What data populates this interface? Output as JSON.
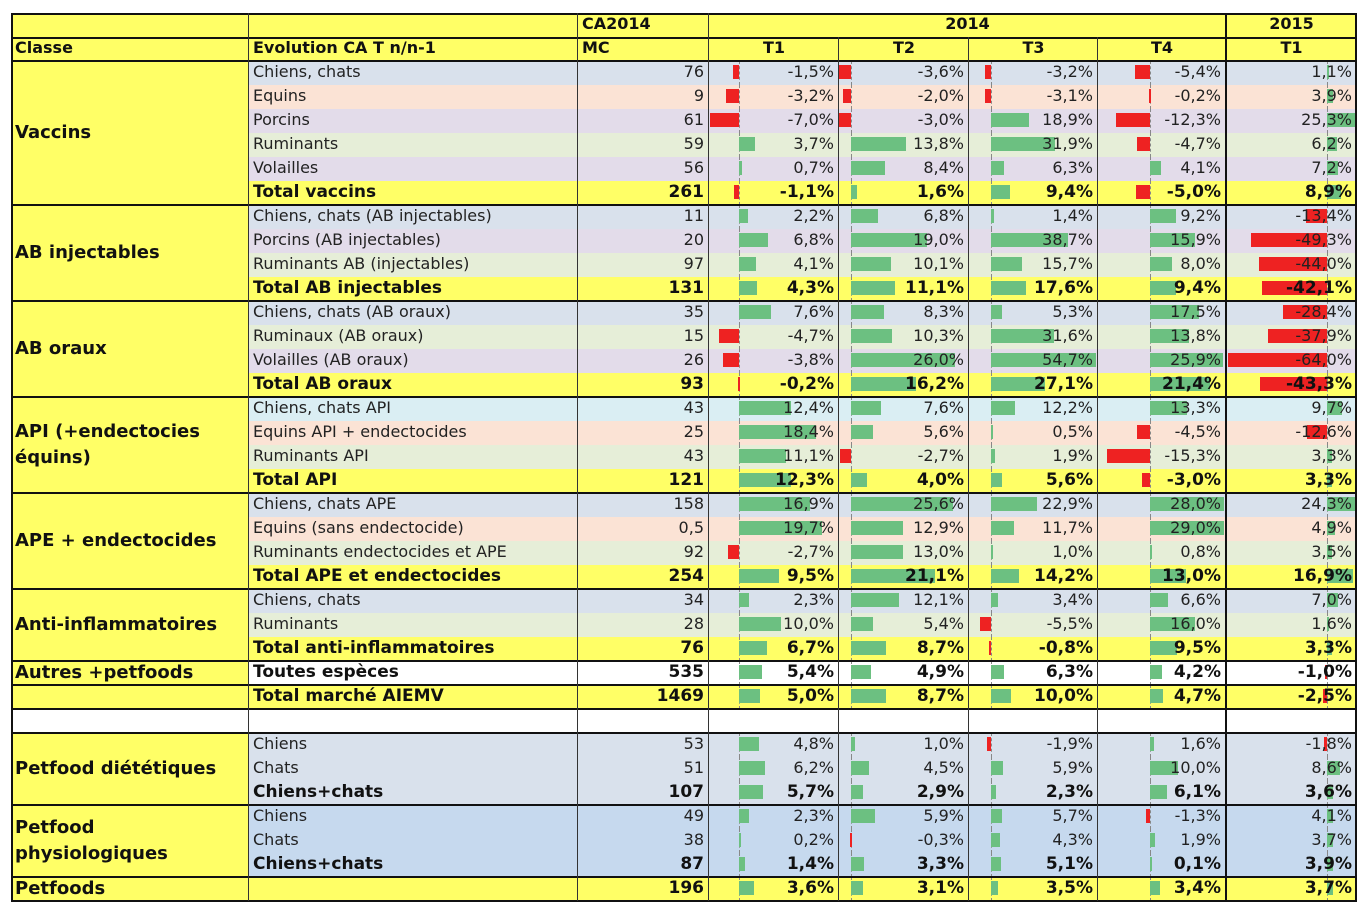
{
  "header": {
    "title_ca": "CA2014",
    "title_2014": "2014",
    "title_2015": "2015",
    "col_classe": "Classe",
    "col_evolution": "Evolution CA T n/n-1",
    "col_mc": "MC",
    "quarters_2014": [
      "T1",
      "T2",
      "T3",
      "T4"
    ],
    "quarter_2015": "T1"
  },
  "colors": {
    "header_yellow": "#ffff66",
    "bar_positive": "#6cc081",
    "bar_negative": "#ee2222"
  },
  "groups": [
    {
      "label": "Vaccins",
      "rows": [
        {
          "label": "Chiens, chats",
          "ca": "76",
          "t1": "-1,5%",
          "t2": "-3,6%",
          "t3": "-3,2%",
          "t4": "-5,4%",
          "t15": "1,1%",
          "v": [
            -1.5,
            -3.6,
            -3.2,
            -5.4,
            1.1
          ],
          "bg": "#d9e1ec"
        },
        {
          "label": "Equins",
          "ca": "9",
          "t1": "-3,2%",
          "t2": "-2,0%",
          "t3": "-3,1%",
          "t4": "-0,2%",
          "t15": "3,9%",
          "v": [
            -3.2,
            -2.0,
            -3.1,
            -0.2,
            3.9
          ],
          "bg": "#fbe3d5"
        },
        {
          "label": "Porcins",
          "ca": "61",
          "t1": "-7,0%",
          "t2": "-3,0%",
          "t3": "18,9%",
          "t4": "-12,3%",
          "t15": "25,3%",
          "v": [
            -7.0,
            -3.0,
            18.9,
            -12.3,
            25.3
          ],
          "bg": "#e3dcea"
        },
        {
          "label": "Ruminants",
          "ca": "59",
          "t1": "3,7%",
          "t2": "13,8%",
          "t3": "31,9%",
          "t4": "-4,7%",
          "t15": "6,2%",
          "v": [
            3.7,
            13.8,
            31.9,
            -4.7,
            6.2
          ],
          "bg": "#e6eed8"
        },
        {
          "label": "Volailles",
          "ca": "56",
          "t1": "0,7%",
          "t2": "8,4%",
          "t3": "6,3%",
          "t4": "4,1%",
          "t15": "7,2%",
          "v": [
            0.7,
            8.4,
            6.3,
            4.1,
            7.2
          ],
          "bg": "#e3dcea"
        },
        {
          "label": "Total vaccins",
          "ca": "261",
          "t1": "-1,1%",
          "t2": "1,6%",
          "t3": "9,4%",
          "t4": "-5,0%",
          "t15": "8,9%",
          "v": [
            -1.1,
            1.6,
            9.4,
            -5.0,
            8.9
          ],
          "total": true
        }
      ]
    },
    {
      "label": "AB injectables",
      "rows": [
        {
          "label": "Chiens, chats (AB injectables)",
          "ca": "11",
          "t1": "2,2%",
          "t2": "6,8%",
          "t3": "1,4%",
          "t4": "9,2%",
          "t15": "-13,4%",
          "v": [
            2.2,
            6.8,
            1.4,
            9.2,
            -13.4
          ],
          "bg": "#d9e1ec"
        },
        {
          "label": "Porcins (AB injectables)",
          "ca": "20",
          "t1": "6,8%",
          "t2": "19,0%",
          "t3": "38,7%",
          "t4": "15,9%",
          "t15": "-49,3%",
          "v": [
            6.8,
            19.0,
            38.7,
            15.9,
            -49.3
          ],
          "bg": "#e3dcea"
        },
        {
          "label": "Ruminants AB (injectables)",
          "ca": "97",
          "t1": "4,1%",
          "t2": "10,1%",
          "t3": "15,7%",
          "t4": "8,0%",
          "t15": "-44,0%",
          "v": [
            4.1,
            10.1,
            15.7,
            8.0,
            -44.0
          ],
          "bg": "#e6eed8"
        },
        {
          "label": "Total AB injectables",
          "ca": "131",
          "t1": "4,3%",
          "t2": "11,1%",
          "t3": "17,6%",
          "t4": "9,4%",
          "t15": "-42,1%",
          "v": [
            4.3,
            11.1,
            17.6,
            9.4,
            -42.1
          ],
          "total": true
        }
      ]
    },
    {
      "label": "AB oraux",
      "rows": [
        {
          "label": "Chiens, chats (AB oraux)",
          "ca": "35",
          "t1": "7,6%",
          "t2": "8,3%",
          "t3": "5,3%",
          "t4": "17,5%",
          "t15": "-28,4%",
          "v": [
            7.6,
            8.3,
            5.3,
            17.5,
            -28.4
          ],
          "bg": "#d9e1ec"
        },
        {
          "label": "Ruminaux (AB oraux)",
          "ca": "15",
          "t1": "-4,7%",
          "t2": "10,3%",
          "t3": "31,6%",
          "t4": "13,8%",
          "t15": "-37,9%",
          "v": [
            -4.7,
            10.3,
            31.6,
            13.8,
            -37.9
          ],
          "bg": "#e6eed8"
        },
        {
          "label": "Volailles (AB oraux)",
          "ca": "26",
          "t1": "-3,8%",
          "t2": "26,0%",
          "t3": "54,7%",
          "t4": "25,9%",
          "t15": "-64,0%",
          "v": [
            -3.8,
            26.0,
            54.7,
            25.9,
            -64.0
          ],
          "bg": "#e3dcea"
        },
        {
          "label": "Total AB oraux",
          "ca": "93",
          "t1": "-0,2%",
          "t2": "16,2%",
          "t3": "27,1%",
          "t4": "21,4%",
          "t15": "-43,3%",
          "v": [
            -0.2,
            16.2,
            27.1,
            21.4,
            -43.3
          ],
          "total": true
        }
      ]
    },
    {
      "label": "API (+endectocies équins)",
      "rows": [
        {
          "label": "Chiens, chats API",
          "ca": "43",
          "t1": "12,4%",
          "t2": "7,6%",
          "t3": "12,2%",
          "t4": "13,3%",
          "t15": "9,7%",
          "v": [
            12.4,
            7.6,
            12.2,
            13.3,
            9.7
          ],
          "bg": "#daeef3"
        },
        {
          "label": "Equins API + endectocides",
          "ca": "25",
          "t1": "18,4%",
          "t2": "5,6%",
          "t3": "0,5%",
          "t4": "-4,5%",
          "t15": "-12,6%",
          "v": [
            18.4,
            5.6,
            0.5,
            -4.5,
            -12.6
          ],
          "bg": "#fbe3d5"
        },
        {
          "label": "Ruminants API",
          "ca": "43",
          "t1": "11,1%",
          "t2": "-2,7%",
          "t3": "1,9%",
          "t4": "-15,3%",
          "t15": "3,3%",
          "v": [
            11.1,
            -2.7,
            1.9,
            -15.3,
            3.3
          ],
          "bg": "#e6eed8"
        },
        {
          "label": "Total API",
          "ca": "121",
          "t1": "12,3%",
          "t2": "4,0%",
          "t3": "5,6%",
          "t4": "-3,0%",
          "t15": "3,3%",
          "v": [
            12.3,
            4.0,
            5.6,
            -3.0,
            3.3
          ],
          "total": true
        }
      ]
    },
    {
      "label": "APE + endectocides",
      "rows": [
        {
          "label": "Chiens, chats APE",
          "ca": "158",
          "t1": "16,9%",
          "t2": "25,6%",
          "t3": "22,9%",
          "t4": "28,0%",
          "t15": "24,3%",
          "v": [
            16.9,
            25.6,
            22.9,
            28.0,
            24.3
          ],
          "bg": "#d9e1ec"
        },
        {
          "label": "Equins (sans endectocide)",
          "ca": "0,5",
          "t1": "19,7%",
          "t2": "12,9%",
          "t3": "11,7%",
          "t4": "29,0%",
          "t15": "4,9%",
          "v": [
            19.7,
            12.9,
            11.7,
            29.0,
            4.9
          ],
          "bg": "#fbe3d5"
        },
        {
          "label": "Ruminants endectocides et APE",
          "ca": "92",
          "t1": "-2,7%",
          "t2": "13,0%",
          "t3": "1,0%",
          "t4": "0,8%",
          "t15": "3,5%",
          "v": [
            -2.7,
            13.0,
            1.0,
            0.8,
            3.5
          ],
          "bg": "#e6eed8"
        },
        {
          "label": "Total APE et endectocides",
          "ca": "254",
          "t1": "9,5%",
          "t2": "21,1%",
          "t3": "14,2%",
          "t4": "13,0%",
          "t15": "16,9%",
          "v": [
            9.5,
            21.1,
            14.2,
            13.0,
            16.9
          ],
          "total": true
        }
      ]
    },
    {
      "label": "Anti-inflammatoires",
      "rows": [
        {
          "label": "Chiens, chats",
          "ca": "34",
          "t1": "2,3%",
          "t2": "12,1%",
          "t3": "3,4%",
          "t4": "6,6%",
          "t15": "7,0%",
          "v": [
            2.3,
            12.1,
            3.4,
            6.6,
            7.0
          ],
          "bg": "#d9e1ec"
        },
        {
          "label": "Ruminants",
          "ca": "28",
          "t1": "10,0%",
          "t2": "5,4%",
          "t3": "-5,5%",
          "t4": "16,0%",
          "t15": "1,6%",
          "v": [
            10.0,
            5.4,
            -5.5,
            16.0,
            1.6
          ],
          "bg": "#e6eed8"
        },
        {
          "label": "Total anti-inflammatoires",
          "ca": "76",
          "t1": "6,7%",
          "t2": "8,7%",
          "t3": "-0,8%",
          "t4": "9,5%",
          "t15": "3,3%",
          "v": [
            6.7,
            8.7,
            -0.8,
            9.5,
            3.3
          ],
          "total": true
        }
      ]
    },
    {
      "label": "Autres +petfoods",
      "rows": [
        {
          "label": "Toutes espèces",
          "ca": "535",
          "t1": "5,4%",
          "t2": "4,9%",
          "t3": "6,3%",
          "t4": "4,2%",
          "t15": "-1,0%",
          "v": [
            5.4,
            4.9,
            6.3,
            4.2,
            -1.0
          ],
          "total": true,
          "bg": "#ffffff"
        }
      ]
    },
    {
      "label": "",
      "rows": [
        {
          "label": "Total marché AIEMV",
          "ca": "1469",
          "t1": "5,0%",
          "t2": "8,7%",
          "t3": "10,0%",
          "t4": "4,7%",
          "t15": "-2,5%",
          "v": [
            5.0,
            8.7,
            10.0,
            4.7,
            -2.5
          ],
          "total": true
        }
      ]
    },
    {
      "label": "",
      "rows": [
        {
          "label": "",
          "ca": "",
          "t1": "",
          "t2": "",
          "t3": "",
          "t4": "",
          "t15": "",
          "v": [],
          "bg": "#ffffff",
          "blank": true
        }
      ]
    },
    {
      "label": "Petfood diététiques",
      "classbg": "#ffff66",
      "rows": [
        {
          "label": "Chiens",
          "ca": "53",
          "t1": "4,8%",
          "t2": "1,0%",
          "t3": "-1,9%",
          "t4": "1,6%",
          "t15": "-1,8%",
          "v": [
            4.8,
            1.0,
            -1.9,
            1.6,
            -1.8
          ],
          "bg": "#d9e1ec"
        },
        {
          "label": "Chats",
          "ca": "51",
          "t1": "6,2%",
          "t2": "4,5%",
          "t3": "5,9%",
          "t4": "10,0%",
          "t15": "8,6%",
          "v": [
            6.2,
            4.5,
            5.9,
            10.0,
            8.6
          ],
          "bg": "#d9e1ec"
        },
        {
          "label": "Chiens+chats",
          "ca": "107",
          "t1": "5,7%",
          "t2": "2,9%",
          "t3": "2,3%",
          "t4": "6,1%",
          "t15": "3,6%",
          "v": [
            5.7,
            2.9,
            2.3,
            6.1,
            3.6
          ],
          "total": true,
          "bg": "#d9e1ec"
        }
      ]
    },
    {
      "label": "Petfood physiologiques",
      "rows": [
        {
          "label": "Chiens",
          "ca": "49",
          "t1": "2,3%",
          "t2": "5,9%",
          "t3": "5,7%",
          "t4": "-1,3%",
          "t15": "4,1%",
          "v": [
            2.3,
            5.9,
            5.7,
            -1.3,
            4.1
          ],
          "bg": "#c6d9ee"
        },
        {
          "label": "Chats",
          "ca": "38",
          "t1": "0,2%",
          "t2": "-0,3%",
          "t3": "4,3%",
          "t4": "1,9%",
          "t15": "3,7%",
          "v": [
            0.2,
            -0.3,
            4.3,
            1.9,
            3.7
          ],
          "bg": "#c6d9ee"
        },
        {
          "label": "Chiens+chats",
          "ca": "87",
          "t1": "1,4%",
          "t2": "3,3%",
          "t3": "5,1%",
          "t4": "0,1%",
          "t15": "3,9%",
          "v": [
            1.4,
            3.3,
            5.1,
            0.1,
            3.9
          ],
          "total": true,
          "bg": "#c6d9ee"
        }
      ]
    },
    {
      "label": "Petfoods",
      "rows": [
        {
          "label": "",
          "ca": "196",
          "t1": "3,6%",
          "t2": "3,1%",
          "t3": "3,5%",
          "t4": "3,4%",
          "t15": "3,7%",
          "v": [
            3.6,
            3.1,
            3.5,
            3.4,
            3.7
          ],
          "total": true
        }
      ]
    }
  ]
}
